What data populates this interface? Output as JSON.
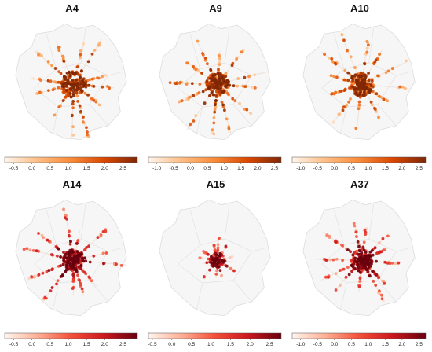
{
  "figure": {
    "panels": [
      {
        "title": "A4",
        "palette": [
          "#fff5eb",
          "#fdbe85",
          "#f98b3a",
          "#d94801",
          "#7f2704"
        ],
        "colorbar": {
          "min": -0.75,
          "max": 2.9,
          "ticks": [
            "-0.5",
            "0.0",
            "0.5",
            "1.0",
            "1.5",
            "2.0",
            "2.5"
          ],
          "tick_values": [
            -0.5,
            0.0,
            0.5,
            1.0,
            1.5,
            2.0,
            2.5
          ]
        }
      },
      {
        "title": "A9",
        "palette": [
          "#fff5eb",
          "#fdbe85",
          "#f98b3a",
          "#d94801",
          "#7f2704"
        ],
        "colorbar": {
          "min": -1.25,
          "max": 2.7,
          "ticks": [
            "-1.0",
            "-0.5",
            "0.0",
            "0.5",
            "1.0",
            "1.5",
            "2.0",
            "2.5"
          ],
          "tick_values": [
            -1.0,
            -0.5,
            0.0,
            0.5,
            1.0,
            1.5,
            2.0,
            2.5
          ]
        }
      },
      {
        "title": "A10",
        "palette": [
          "#fff5eb",
          "#fdbe85",
          "#f98b3a",
          "#d94801",
          "#7f2704"
        ],
        "colorbar": {
          "min": -1.25,
          "max": 2.7,
          "ticks": [
            "-1.0",
            "-0.5",
            "0.0",
            "0.5",
            "1.0",
            "1.5",
            "2.0",
            "2.5"
          ],
          "tick_values": [
            -1.0,
            -0.5,
            0.0,
            0.5,
            1.0,
            1.5,
            2.0,
            2.5
          ]
        }
      },
      {
        "title": "A14",
        "palette": [
          "#fff5f0",
          "#fcaf93",
          "#f44f39",
          "#cb181d",
          "#67000d"
        ],
        "colorbar": {
          "min": -0.75,
          "max": 2.9,
          "ticks": [
            "-0.5",
            "0.0",
            "0.5",
            "1.0",
            "1.5",
            "2.0",
            "2.5"
          ],
          "tick_values": [
            -0.5,
            0.0,
            0.5,
            1.0,
            1.5,
            2.0,
            2.5
          ]
        }
      },
      {
        "title": "A15",
        "palette": [
          "#fff5f0",
          "#fcaf93",
          "#f44f39",
          "#cb181d",
          "#67000d"
        ],
        "colorbar": {
          "min": -0.6,
          "max": 2.8,
          "ticks": [
            "-0.5",
            "0.0",
            "0.5",
            "1.0",
            "1.5",
            "2.0",
            "2.5"
          ],
          "tick_values": [
            -0.5,
            0.0,
            0.5,
            1.0,
            1.5,
            2.0,
            2.5
          ]
        }
      },
      {
        "title": "A37",
        "palette": [
          "#fff5f0",
          "#fcaf93",
          "#f44f39",
          "#cb181d",
          "#67000d"
        ],
        "colorbar": {
          "min": -1.25,
          "max": 2.7,
          "ticks": [
            "-1.0",
            "-0.5",
            "0.0",
            "0.5",
            "1.0",
            "1.5",
            "2.0",
            "2.5"
          ],
          "tick_values": [
            -1.0,
            -0.5,
            0.0,
            0.5,
            1.0,
            1.5,
            2.0,
            2.5
          ]
        }
      }
    ]
  }
}
